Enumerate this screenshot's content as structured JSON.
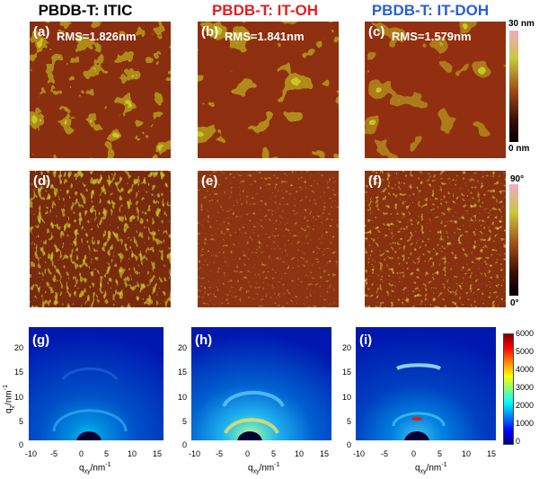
{
  "columns": [
    {
      "title": "PBDB-T: ITIC",
      "color": "#000000"
    },
    {
      "title": "PBDB-T: IT-OH",
      "color": "#e02020"
    },
    {
      "title": "PBDB-T: IT-DOH",
      "color": "#2a5fd8"
    }
  ],
  "height_panels": [
    {
      "label": "(a)",
      "rms": "RMS=1.826nm"
    },
    {
      "label": "(b)",
      "rms": "RMS=1.841nm"
    },
    {
      "label": "(c)",
      "rms": "RMS=1.579nm"
    }
  ],
  "phase_panels": [
    {
      "label": "(d)"
    },
    {
      "label": "(e)"
    },
    {
      "label": "(f)"
    }
  ],
  "giwaxs_panels": [
    {
      "label": "(g)"
    },
    {
      "label": "(h)"
    },
    {
      "label": "(i)"
    }
  ],
  "colorbars": {
    "height": {
      "max": "30 nm",
      "min": "0 nm"
    },
    "phase": {
      "max": "90°",
      "min": "0°"
    },
    "giwaxs": {
      "ticks": [
        "6000",
        "5000",
        "4000",
        "3000",
        "2000",
        "1000",
        "0"
      ]
    }
  },
  "axes": {
    "x_ticks": [
      "-10",
      "-5",
      "0",
      "5",
      "10",
      "15"
    ],
    "y_ticks": [
      "20",
      "15",
      "10",
      "5",
      "0"
    ],
    "x_label_main": "q",
    "x_label_sub": "xy",
    "x_label_unit": "/nm",
    "x_label_exp": "-1",
    "y_label_main": "q",
    "y_label_sub": "z",
    "y_label_unit": "/nm",
    "y_label_exp": "-1"
  }
}
